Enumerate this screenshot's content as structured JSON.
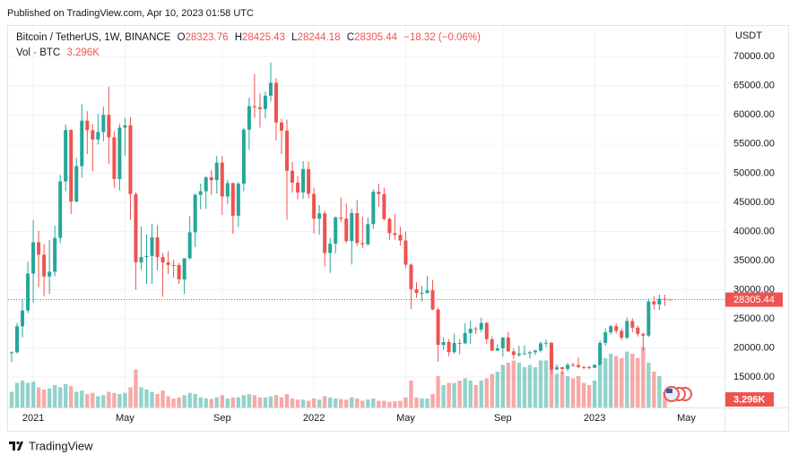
{
  "header": {
    "published": "Published on TradingView.com, Apr 10, 2023 01:58 UTC",
    "brand": "TradingView"
  },
  "chart_data": {
    "type": "candlestick",
    "title": "Bitcoin / TetherUS, 1W, BINANCE",
    "ohlc_keys": [
      "O",
      "H",
      "L",
      "C"
    ],
    "change_label": "−18.32 (−0.06%)",
    "y_axis_label": "USDT",
    "categories": [
      null,
      null,
      null,
      null,
      "2021",
      null,
      null,
      null,
      null,
      null,
      null,
      null,
      null,
      null,
      null,
      null,
      null,
      null,
      null,
      null,
      null,
      "May",
      null,
      null,
      null,
      null,
      null,
      null,
      null,
      null,
      null,
      null,
      null,
      null,
      null,
      null,
      null,
      null,
      null,
      "Sep",
      null,
      null,
      null,
      null,
      null,
      null,
      null,
      null,
      null,
      null,
      null,
      null,
      null,
      null,
      null,
      null,
      "2022",
      null,
      null,
      null,
      null,
      null,
      null,
      null,
      null,
      null,
      null,
      null,
      null,
      null,
      null,
      null,
      null,
      "May",
      null,
      null,
      null,
      null,
      null,
      null,
      null,
      null,
      null,
      null,
      null,
      null,
      null,
      null,
      null,
      null,
      null,
      "Sep",
      null,
      null,
      null,
      null,
      null,
      null,
      null,
      null,
      null,
      null,
      null,
      null,
      null,
      null,
      null,
      null,
      "2023",
      null,
      null,
      null,
      null,
      null,
      null,
      null,
      null,
      null,
      null,
      null,
      null,
      null,
      null,
      null,
      null,
      "May"
    ],
    "series": [
      {
        "up_color": "#26a69a",
        "down_color": "#ef5350",
        "open": [
          19147,
          19274,
          23733,
          26443,
          32782,
          38150,
          36019,
          32259,
          33092,
          38886,
          48577,
          57408,
          45135,
          51206,
          59000,
          57351,
          55777,
          57059,
          60000,
          56150,
          49000,
          57800,
          58200,
          46400,
          34700,
          35600,
          35800,
          39000,
          35600,
          34700,
          34250,
          34240,
          31780,
          35400,
          39850,
          46280,
          46900,
          49300,
          48800,
          51800,
          46000,
          48300,
          42700,
          48200,
          57471,
          61500,
          61300,
          61000,
          63300,
          65500,
          58700,
          57300,
          50400,
          48380,
          46700,
          50700,
          46450,
          42200,
          43100,
          36300,
          37900,
          42400,
          42200,
          38350,
          43150,
          38000,
          37800,
          41260,
          46800,
          46400,
          42150,
          39700,
          39400,
          38450,
          34300,
          30100,
          29450,
          29460,
          29900,
          26600,
          20550,
          21030,
          19300,
          20850,
          20800,
          22580,
          23300,
          23175,
          24300,
          21500,
          19550,
          19950,
          21800,
          19420,
          18800,
          19050,
          19070,
          19260,
          19560,
          20800,
          20900,
          16320,
          16700,
          16420,
          17110,
          17090,
          16740,
          16710,
          16620,
          17125,
          20880,
          22700,
          23750,
          22950,
          21770,
          24630,
          23500,
          22430,
          22130,
          27990,
          27480,
          28450,
          28323.76,
          null,
          null,
          null
        ],
        "high": [
          19420,
          24295,
          28422,
          34778,
          41950,
          40100,
          37850,
          38531,
          41000,
          49700,
          58352,
          57533,
          52640,
          61844,
          60633,
          58419,
          60200,
          61400,
          64854,
          57200,
          58458,
          59500,
          59592,
          46700,
          40841,
          39500,
          41330,
          41064,
          36300,
          36600,
          35100,
          34600,
          35400,
          42599,
          46500,
          48200,
          49500,
          50500,
          52900,
          52920,
          48840,
          48350,
          48500,
          57800,
          62933,
          67000,
          63700,
          64000,
          69000,
          66300,
          59300,
          59200,
          51900,
          49500,
          52088,
          52000,
          47500,
          44500,
          43500,
          38900,
          42600,
          45850,
          44800,
          43900,
          45400,
          42600,
          42400,
          47200,
          48200,
          47500,
          42400,
          42950,
          40800,
          40000,
          34500,
          31300,
          30650,
          32400,
          31700,
          26900,
          21850,
          21550,
          22500,
          21500,
          24280,
          24670,
          23650,
          25211,
          24450,
          22000,
          20600,
          21860,
          22800,
          19950,
          20400,
          20480,
          19540,
          19700,
          21090,
          21480,
          21050,
          17200,
          16780,
          17430,
          17450,
          18400,
          16960,
          16970,
          17180,
          21300,
          23400,
          23950,
          24260,
          23330,
          25250,
          25120,
          23880,
          22600,
          28470,
          28870,
          29200,
          29150,
          28425.43,
          null,
          null,
          null
        ],
        "low": [
          17572,
          19000,
          21815,
          26000,
          27734,
          30420,
          28850,
          29241,
          32296,
          37988,
          46914,
          43000,
          45000,
          49274,
          53271,
          50313,
          54900,
          55473,
          51541,
          47500,
          47044,
          53000,
          42001,
          30000,
          33425,
          31000,
          31000,
          33336,
          28805,
          32700,
          32100,
          31000,
          29278,
          35200,
          37300,
          43800,
          43900,
          46300,
          46500,
          42843,
          44700,
          39600,
          40750,
          46900,
          54000,
          59500,
          57820,
          59400,
          62300,
          55600,
          53256,
          42000,
          46700,
          45500,
          45560,
          45678,
          39650,
          39450,
          34000,
          32900,
          36250,
          41600,
          38000,
          34322,
          37500,
          37150,
          37600,
          40450,
          44200,
          41850,
          38500,
          38600,
          37600,
          33700,
          26700,
          28600,
          28000,
          29300,
          26500,
          17622,
          19650,
          18626,
          19000,
          18900,
          20750,
          20700,
          22400,
          22700,
          20750,
          19500,
          19520,
          18500,
          19350,
          18130,
          18470,
          18950,
          18190,
          18800,
          19250,
          20150,
          15588,
          16200,
          15480,
          16000,
          16800,
          16550,
          16380,
          16330,
          16550,
          17120,
          20400,
          22300,
          22500,
          21350,
          21530,
          22700,
          21970,
          19550,
          21900,
          26600,
          26500,
          27200,
          28244.18,
          null,
          null,
          null
        ],
        "close": [
          19274,
          23733,
          26443,
          32782,
          38150,
          36019,
          32259,
          33092,
          38886,
          48577,
          57408,
          45135,
          51206,
          59000,
          57351,
          55777,
          57059,
          60000,
          56150,
          49000,
          57800,
          58200,
          46400,
          34700,
          35600,
          35800,
          39000,
          35600,
          34700,
          34250,
          34240,
          31780,
          35400,
          39850,
          46280,
          46900,
          49300,
          48800,
          51800,
          46000,
          48300,
          42700,
          48200,
          57471,
          61500,
          61300,
          61000,
          63300,
          65500,
          58700,
          57300,
          50400,
          48380,
          46700,
          50700,
          46450,
          42200,
          43100,
          36300,
          37900,
          42400,
          42200,
          38350,
          43150,
          38000,
          37800,
          41260,
          46800,
          46400,
          42150,
          39700,
          39400,
          38450,
          34300,
          30100,
          29450,
          29460,
          29900,
          26600,
          20550,
          21030,
          19300,
          20850,
          20800,
          22580,
          23300,
          23175,
          24300,
          21500,
          19550,
          19950,
          21800,
          19420,
          18800,
          19050,
          19070,
          19260,
          19560,
          20800,
          20900,
          16320,
          16700,
          16420,
          17110,
          17090,
          16740,
          16710,
          16620,
          17125,
          20880,
          22700,
          23750,
          22950,
          21770,
          24630,
          23500,
          22430,
          22130,
          27990,
          27480,
          28450,
          28323.76,
          28305.44,
          null,
          null,
          null
        ]
      }
    ],
    "volume": {
      "name": "Vol · BTC",
      "up_color": "#26a69a80",
      "down_color": "#ef535080",
      "values": [
        700000,
        1100000,
        1200000,
        1100000,
        1150000,
        900000,
        800000,
        850000,
        1000000,
        900000,
        1050000,
        950000,
        700000,
        750000,
        600000,
        650000,
        500000,
        550000,
        700000,
        650000,
        600000,
        650000,
        900000,
        1700000,
        900000,
        800000,
        700000,
        600000,
        750000,
        500000,
        400000,
        450000,
        550000,
        650000,
        600000,
        450000,
        400000,
        380000,
        450000,
        550000,
        400000,
        450000,
        450000,
        550000,
        600000,
        550000,
        450000,
        450000,
        500000,
        550000,
        450000,
        600000,
        400000,
        350000,
        350000,
        300000,
        400000,
        350000,
        500000,
        450000,
        400000,
        380000,
        350000,
        450000,
        400000,
        300000,
        350000,
        400000,
        300000,
        300000,
        250000,
        280000,
        300000,
        450000,
        1200000,
        450000,
        400000,
        400000,
        600000,
        1400000,
        1000000,
        1100000,
        1100000,
        1200000,
        1300000,
        1200000,
        1000000,
        1200000,
        1300000,
        1500000,
        1600000,
        1900000,
        2000000,
        2100000,
        2000000,
        1800000,
        1900000,
        1800000,
        2100000,
        2100000,
        2600000,
        1500000,
        1600000,
        1400000,
        1300000,
        1400000,
        1100000,
        1000000,
        1200000,
        2300000,
        2200000,
        2400000,
        2300000,
        2200000,
        2500000,
        2400000,
        2200000,
        2700000,
        2000000,
        1600000,
        1400000,
        700000,
        3296,
        null,
        null,
        null
      ],
      "value_labels": [
        null,
        null,
        null,
        null,
        null,
        null,
        null,
        null,
        null,
        null,
        null,
        null,
        null,
        null,
        null,
        null,
        null,
        null,
        null,
        null,
        null,
        null,
        null,
        null,
        null,
        null,
        null,
        null,
        null,
        null,
        null,
        null,
        null,
        null,
        null,
        null,
        null,
        null,
        null,
        null,
        null,
        null,
        null,
        null,
        null,
        null,
        null,
        null,
        null,
        null,
        null,
        null,
        null,
        null,
        null,
        null,
        null,
        null,
        null,
        null,
        null,
        null,
        null,
        null,
        null,
        null,
        null,
        null,
        null,
        null,
        null,
        null,
        null,
        null,
        null,
        null,
        null,
        null,
        null,
        null,
        null,
        null,
        null,
        null,
        null,
        null,
        null,
        null,
        null,
        null,
        null,
        null,
        null,
        null,
        null,
        null,
        null,
        null,
        null,
        null,
        null,
        null,
        null,
        null,
        null,
        null,
        null,
        null,
        null,
        null,
        null,
        null,
        null,
        null,
        null,
        null,
        null,
        null,
        null,
        null,
        null,
        null,
        "3.296K",
        null,
        null,
        null
      ]
    },
    "ylim": [
      9800,
      75100
    ],
    "yticks": [
      {
        "value": 15000,
        "label": "15000.00"
      },
      {
        "value": 20000,
        "label": "20000.00"
      },
      {
        "value": 25000,
        "label": "25000.00"
      },
      {
        "value": 30000,
        "label": "30000.00"
      },
      {
        "value": 35000,
        "label": "35000.00"
      },
      {
        "value": 40000,
        "label": "40000.00"
      },
      {
        "value": 45000,
        "label": "45000.00"
      },
      {
        "value": 50000,
        "label": "50000.00"
      },
      {
        "value": 55000,
        "label": "55000.00"
      },
      {
        "value": 60000,
        "label": "60000.00"
      },
      {
        "value": 65000,
        "label": "65000.00"
      },
      {
        "value": 70000,
        "label": "70000.00"
      }
    ],
    "grid": true
  }
}
